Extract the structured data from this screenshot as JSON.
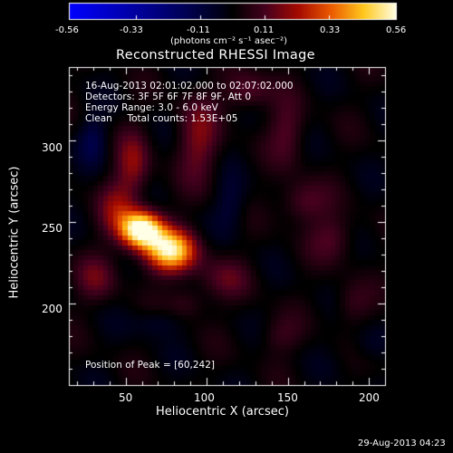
{
  "chart_data": {
    "type": "heatmap",
    "title": "Reconstructed RHESSI Image",
    "xlabel": "Heliocentric X (arcsec)",
    "ylabel": "Heliocentric Y (arcsec)",
    "xlim": [
      15,
      210
    ],
    "ylim": [
      150,
      345
    ],
    "x_ticks": [
      "50",
      "100",
      "150",
      "200"
    ],
    "x_tick_values": [
      50,
      100,
      150,
      200
    ],
    "y_ticks": [
      "200",
      "250",
      "300"
    ],
    "y_tick_values": [
      200,
      250,
      300
    ],
    "colorbar": {
      "min": -0.56,
      "max": 0.56,
      "ticks": [
        "-0.56",
        "-0.33",
        "-0.11",
        "0.11",
        "0.33",
        "0.56"
      ],
      "tick_values": [
        -0.56,
        -0.33,
        -0.11,
        0.11,
        0.33,
        0.56
      ],
      "unit_label": "(photons cm⁻² s⁻¹ asec⁻²)",
      "colormap": "blue-black-red-yellow-white"
    },
    "info_lines": [
      "16-Aug-2013 02:01:02.000 to 02:07:02.000",
      "Detectors: 3F 5F 6F 7F 8F 9F, Att 0",
      "Energy Range: 3.0 - 6.0 keV",
      "Clean     Total counts: 1.53E+05"
    ],
    "peak_label": "Position of Peak = [60,242]",
    "peak": {
      "x": 60,
      "y": 242
    },
    "sources": [
      {
        "x": 60,
        "y": 245,
        "sx": 9,
        "sy": 8,
        "amp": 0.62
      },
      {
        "x": 78,
        "y": 232,
        "sx": 11,
        "sy": 9,
        "amp": 0.5
      },
      {
        "x": 45,
        "y": 258,
        "sx": 8,
        "sy": 12,
        "amp": 0.16
      },
      {
        "x": 55,
        "y": 285,
        "sx": 7,
        "sy": 14,
        "amp": 0.17
      },
      {
        "x": 95,
        "y": 300,
        "sx": 9,
        "sy": 18,
        "amp": 0.16
      },
      {
        "x": 125,
        "y": 330,
        "sx": 10,
        "sy": 8,
        "amp": 0.14
      },
      {
        "x": 150,
        "y": 305,
        "sx": 8,
        "sy": 14,
        "amp": 0.12
      },
      {
        "x": 160,
        "y": 262,
        "sx": 10,
        "sy": 9,
        "amp": 0.13
      },
      {
        "x": 178,
        "y": 240,
        "sx": 10,
        "sy": 10,
        "amp": 0.11
      },
      {
        "x": 112,
        "y": 215,
        "sx": 12,
        "sy": 9,
        "amp": 0.1
      },
      {
        "x": 32,
        "y": 215,
        "sx": 9,
        "sy": 10,
        "amp": 0.12
      },
      {
        "x": 88,
        "y": 200,
        "sx": 8,
        "sy": 7,
        "amp": 0.09
      },
      {
        "x": 145,
        "y": 180,
        "sx": 9,
        "sy": 8,
        "amp": 0.08
      },
      {
        "x": 190,
        "y": 200,
        "sx": 8,
        "sy": 9,
        "amp": 0.09
      },
      {
        "x": 30,
        "y": 300,
        "sx": 6,
        "sy": 10,
        "amp": -0.12
      },
      {
        "x": 115,
        "y": 260,
        "sx": 7,
        "sy": 12,
        "amp": -0.09
      },
      {
        "x": 70,
        "y": 188,
        "sx": 10,
        "sy": 6,
        "amp": -0.08
      },
      {
        "x": 200,
        "y": 175,
        "sx": 8,
        "sy": 8,
        "amp": -0.07
      }
    ]
  },
  "footer_date": "29-Aug-2013 04:23"
}
